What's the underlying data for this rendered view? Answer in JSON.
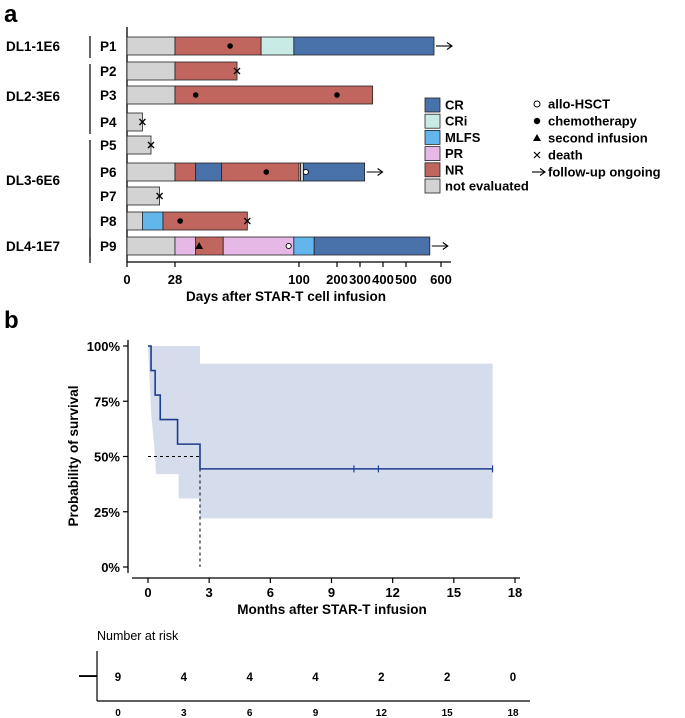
{
  "panel_a": {
    "label": "a",
    "chart_data": {
      "type": "bar",
      "orientation": "horizontal",
      "xlabel": "Days after STAR-T cell infusion",
      "x_ticks": [
        "0",
        "28",
        "100",
        "200",
        "300",
        "400",
        "500",
        "600"
      ],
      "groups": [
        {
          "name": "DL1-1E6",
          "patients": [
            "P1"
          ]
        },
        {
          "name": "DL2-3E6",
          "patients": [
            "P2",
            "P3",
            "P4"
          ]
        },
        {
          "name": "DL3-6E6",
          "patients": [
            "P5",
            "P6",
            "P7",
            "P8"
          ]
        },
        {
          "name": "DL4-1E7",
          "patients": [
            "P9"
          ]
        }
      ],
      "patients": [
        {
          "id": "P1",
          "segments": [
            [
              0,
              28,
              "not_evaluated"
            ],
            [
              28,
              78,
              "NR"
            ],
            [
              78,
              97,
              "CRi"
            ],
            [
              97,
              580,
              "CR"
            ]
          ],
          "markers": [
            {
              "type": "chemotherapy",
              "day": 60
            },
            {
              "type": "arrow",
              "day": 580
            }
          ]
        },
        {
          "id": "P2",
          "segments": [
            [
              0,
              28,
              "not_evaluated"
            ],
            [
              28,
              64,
              "NR"
            ]
          ],
          "markers": [
            {
              "type": "death",
              "day": 64
            }
          ]
        },
        {
          "id": "P3",
          "segments": [
            [
              0,
              28,
              "not_evaluated"
            ],
            [
              28,
              355,
              "NR"
            ]
          ],
          "markers": [
            {
              "type": "chemotherapy",
              "day": 40
            },
            {
              "type": "chemotherapy",
              "day": 200
            }
          ]
        },
        {
          "id": "P4",
          "segments": [
            [
              0,
              9,
              "not_evaluated"
            ]
          ],
          "markers": [
            {
              "type": "death",
              "day": 9
            }
          ]
        },
        {
          "id": "P5",
          "segments": [
            [
              0,
              14,
              "not_evaluated"
            ]
          ],
          "markers": [
            {
              "type": "death",
              "day": 14
            }
          ]
        },
        {
          "id": "P6",
          "segments": [
            [
              0,
              28,
              "not_evaluated"
            ],
            [
              28,
              40,
              "NR"
            ],
            [
              40,
              55,
              "CR"
            ],
            [
              55,
              100,
              "NR"
            ],
            [
              100,
              104,
              "CRi"
            ],
            [
              104,
              112,
              "not_evaluated"
            ],
            [
              112,
              320,
              "CR"
            ]
          ],
          "markers": [
            {
              "type": "chemotherapy",
              "day": 81
            },
            {
              "type": "allo-HSCT",
              "day": 118
            },
            {
              "type": "arrow",
              "day": 320
            }
          ]
        },
        {
          "id": "P7",
          "segments": [
            [
              0,
              19,
              "not_evaluated"
            ]
          ],
          "markers": [
            {
              "type": "death",
              "day": 19
            }
          ]
        },
        {
          "id": "P8",
          "segments": [
            [
              0,
              9,
              "not_evaluated"
            ],
            [
              9,
              21,
              "MLFS"
            ],
            [
              21,
              21,
              "not_evaluated"
            ],
            [
              21,
              70,
              "NR"
            ]
          ],
          "markers": [
            {
              "type": "chemotherapy",
              "day": 31
            },
            {
              "type": "death",
              "day": 70
            }
          ]
        },
        {
          "id": "P9",
          "segments": [
            [
              0,
              28,
              "not_evaluated"
            ],
            [
              28,
              40,
              "PR"
            ],
            [
              40,
              56,
              "NR"
            ],
            [
              56,
              97,
              "PR"
            ],
            [
              97,
              140,
              "MLFS"
            ],
            [
              140,
              568,
              "CR"
            ]
          ],
          "markers": [
            {
              "type": "second_infusion",
              "day": 42
            },
            {
              "type": "allo-HSCT",
              "day": 94
            },
            {
              "type": "arrow",
              "day": 568
            }
          ]
        }
      ],
      "legend": {
        "colors": [
          {
            "key": "CR",
            "label": "CR",
            "color": "#4a72aa"
          },
          {
            "key": "CRi",
            "label": "CRi",
            "color": "#c8ebe6"
          },
          {
            "key": "MLFS",
            "label": "MLFS",
            "color": "#63b6ec"
          },
          {
            "key": "PR",
            "label": "PR",
            "color": "#e6b8e6"
          },
          {
            "key": "NR",
            "label": "NR",
            "color": "#c0665e"
          },
          {
            "key": "not_evaluated",
            "label": "not evaluated",
            "color": "#d3d3d3"
          }
        ],
        "symbols": [
          {
            "key": "allo-HSCT",
            "label": "allo-HSCT",
            "glyph": "○"
          },
          {
            "key": "chemotherapy",
            "label": "chemotherapy",
            "glyph": "●"
          },
          {
            "key": "second_infusion",
            "label": "second infusion",
            "glyph": "▲"
          },
          {
            "key": "death",
            "label": "death",
            "glyph": "×"
          },
          {
            "key": "arrow",
            "label": "follow-up ongoing",
            "glyph": "→"
          }
        ]
      }
    }
  },
  "panel_b": {
    "label": "b",
    "chart_data": {
      "type": "line",
      "subtype": "kaplan-meier",
      "xlabel": "Months after STAR-T infusion",
      "ylabel": "Probability of survival",
      "xlim": [
        0,
        18
      ],
      "ylim": [
        0,
        1
      ],
      "x_ticks": [
        "0",
        "3",
        "6",
        "9",
        "12",
        "15",
        "18"
      ],
      "y_ticks": [
        "0%",
        "25%",
        "50%",
        "75%",
        "100%"
      ],
      "steps": [
        [
          0,
          1.0
        ],
        [
          0.15,
          0.889
        ],
        [
          0.35,
          0.778
        ],
        [
          0.6,
          0.667
        ],
        [
          1.45,
          0.556
        ],
        [
          2.55,
          0.444
        ],
        [
          16.9,
          0.444
        ]
      ],
      "censored": [
        10.1,
        11.3,
        16.9
      ],
      "ci_upper": [
        [
          0,
          1.0
        ],
        [
          2.55,
          1.0
        ],
        [
          2.55,
          0.92
        ],
        [
          16.9,
          0.92
        ]
      ],
      "ci_lower": [
        [
          0,
          1.0
        ],
        [
          0.15,
          0.7
        ],
        [
          0.3,
          0.55
        ],
        [
          0.4,
          0.42
        ],
        [
          1.5,
          0.42
        ],
        [
          1.5,
          0.31
        ],
        [
          2.55,
          0.31
        ],
        [
          2.55,
          0.22
        ],
        [
          16.9,
          0.22
        ]
      ],
      "median_survival": 2.55,
      "line_color": "#1f3d8f",
      "ci_color": "#d5dceb"
    },
    "risk_table": {
      "title": "Number at risk",
      "strata_symbol": "—",
      "times": [
        "0",
        "3",
        "6",
        "9",
        "12",
        "15",
        "18"
      ],
      "counts": [
        "9",
        "4",
        "4",
        "4",
        "2",
        "2",
        "0"
      ]
    }
  }
}
